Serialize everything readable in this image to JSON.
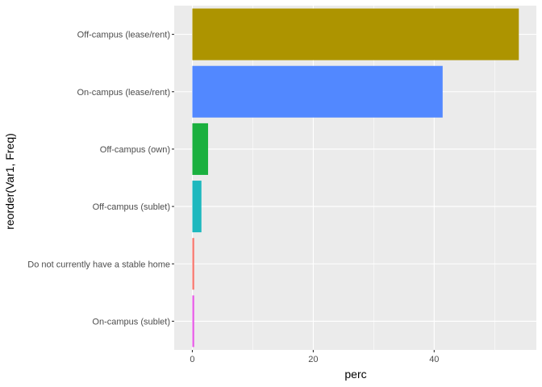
{
  "chart_data": {
    "type": "bar",
    "orientation": "horizontal",
    "xlabel": "perc",
    "ylabel": "reorder(Var1, Freq)",
    "xlim": [
      -3,
      56.9
    ],
    "x_ticks": [
      0,
      20,
      40
    ],
    "grid": true,
    "legend": "none",
    "categories": [
      "Off-campus (lease/rent)",
      "On-campus (lease/rent)",
      "Off-campus (own)",
      "Off-campus (sublet)",
      "Do not currently have a stable home",
      "On-campus (sublet)"
    ],
    "values": [
      54.0,
      41.4,
      2.6,
      1.5,
      0.3,
      0.3
    ],
    "colors": [
      "#AD9400",
      "#5288FF",
      "#1BB03F",
      "#1DB8BE",
      "#F8766D",
      "#E85AE8"
    ],
    "panel_background": "#EBEBEB",
    "grid_color": "#FFFFFF"
  }
}
